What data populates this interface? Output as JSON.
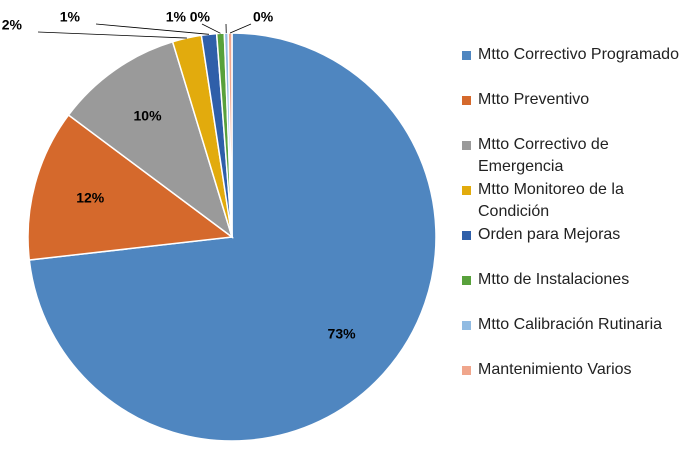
{
  "chart_data": {
    "type": "pie",
    "categories": [
      "Mtto Correctivo Programado",
      "Mtto Preventivo",
      "Mtto Correctivo de Emergencia",
      "Mtto Monitoreo de la Condición",
      "Orden para Mejoras",
      "Mtto de Instalaciones",
      "Mtto Calibración Rutinaria",
      "Mantenimiento Varios"
    ],
    "values": [
      73.2,
      12.0,
      10.1,
      2.3,
      1.2,
      0.6,
      0.3,
      0.3
    ],
    "value_labels": [
      "73%",
      "12%",
      "10%",
      "2%",
      "1%",
      "1%",
      "0%",
      "0%"
    ],
    "colors": [
      "#4f86c0",
      "#d5692c",
      "#9a9a9a",
      "#e2ab0d",
      "#2f5fa9",
      "#58a13b",
      "#91bbe2",
      "#f0a68c"
    ],
    "legend": "right"
  }
}
